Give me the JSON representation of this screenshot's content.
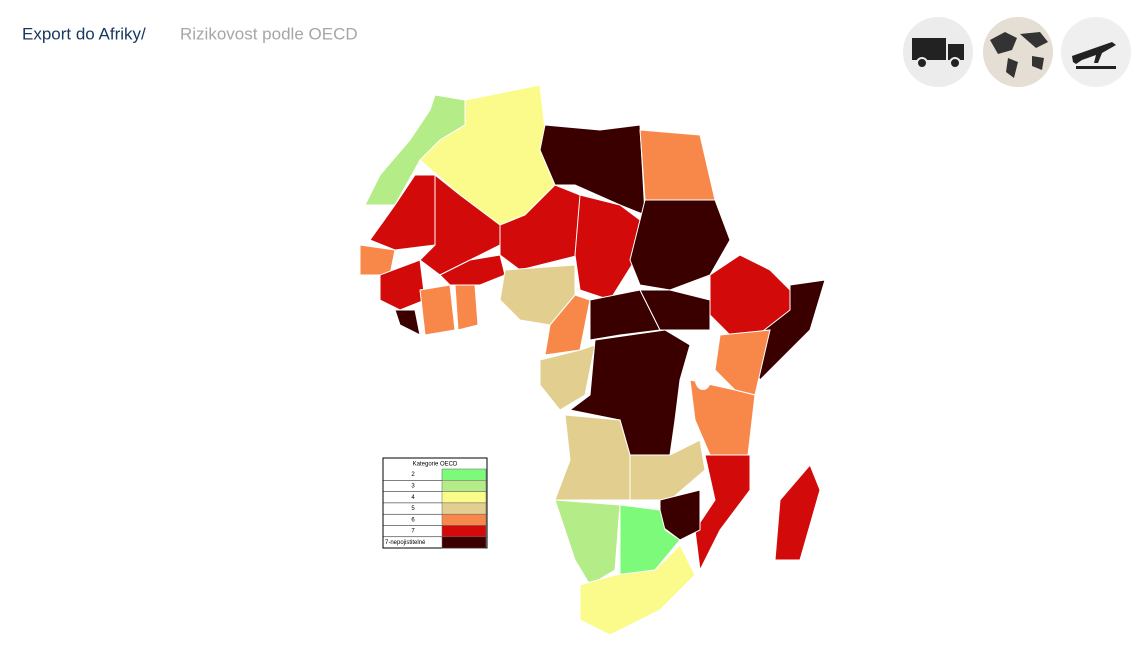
{
  "header": {
    "section": "Export do Afriky/",
    "title": "Rizikovost podle OECD"
  },
  "legend": {
    "title": "Kategorie OECD",
    "items": [
      {
        "label": "2",
        "color": "#7dfa7a"
      },
      {
        "label": "3",
        "color": "#b4ec88"
      },
      {
        "label": "4",
        "color": "#fbfb8c"
      },
      {
        "label": "5",
        "color": "#e2cf8f"
      },
      {
        "label": "6",
        "color": "#f8884a"
      },
      {
        "label": "7",
        "color": "#d20a0a"
      },
      {
        "label": "7-nepojistitelné",
        "color": "#3a0000"
      }
    ]
  }
}
